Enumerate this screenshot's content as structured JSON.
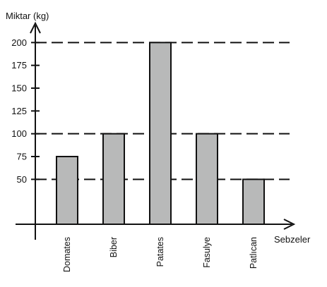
{
  "chart_data": {
    "type": "bar",
    "ylabel": "Miktar (kg)",
    "xlabel": "Sebzeler",
    "categories": [
      "Domates",
      "Biber",
      "Patates",
      "Fasulye",
      "Patlıcan"
    ],
    "values": [
      75,
      100,
      200,
      100,
      50
    ],
    "yticks": [
      50,
      75,
      100,
      125,
      150,
      175,
      200
    ],
    "dashed_reference_lines": [
      50,
      100,
      200
    ],
    "grid": false,
    "bar_color": "#b8b9b9",
    "bar_edge_color": "#111111"
  }
}
